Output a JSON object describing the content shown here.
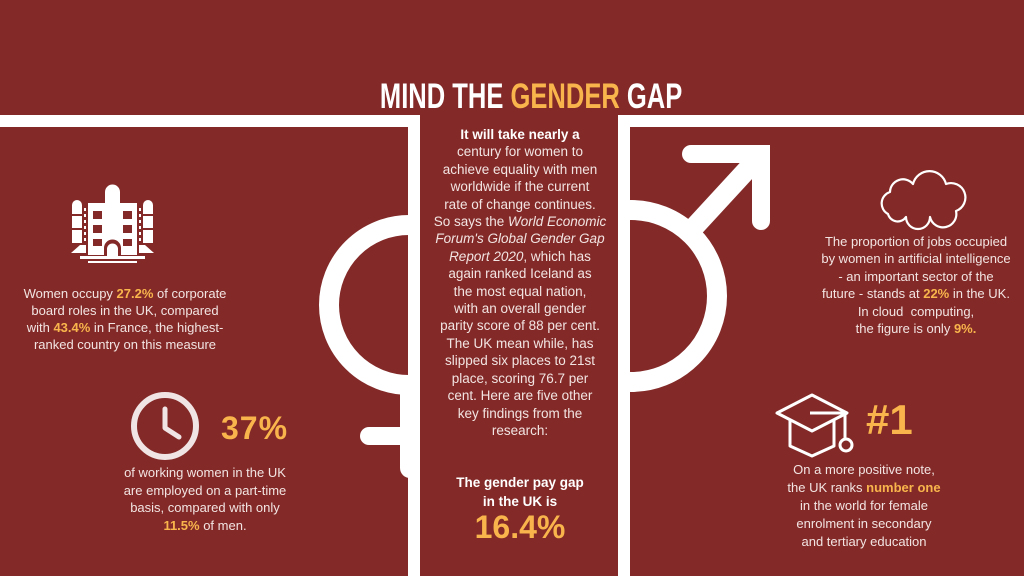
{
  "title": {
    "prefix": "MIND THE ",
    "highlight": "GENDER",
    "suffix": " GAP"
  },
  "colors": {
    "background": "#832a28",
    "highlight": "#f9b54c",
    "text": "#f2e4e2",
    "frame": "#ffffff"
  },
  "icons": {
    "board": "building-icon",
    "parttime": "clock-icon",
    "ai": "cloud-icon",
    "education": "graduation-cap-icon",
    "left_symbol": "female-symbol-icon",
    "right_symbol": "male-symbol-icon"
  },
  "board_roles": {
    "lines": [
      [
        "Women occupy ",
        {
          "text": "27.2%",
          "style": "hl"
        },
        " of corporate"
      ],
      [
        "board roles in the UK, compared"
      ],
      [
        "with ",
        {
          "text": "43.4%",
          "style": "hl"
        },
        " in France, the highest-"
      ],
      [
        "ranked country on this measure"
      ]
    ]
  },
  "part_time": {
    "stat": "37%",
    "lines": [
      [
        "of working women in the UK"
      ],
      [
        "are employed on a part-time"
      ],
      [
        "basis, compared with only"
      ],
      [
        {
          "text": "11.5%",
          "style": "hl"
        },
        " of men."
      ]
    ]
  },
  "intro": {
    "lines": [
      [
        {
          "text": "It will take nearly a",
          "style": "b"
        }
      ],
      [
        "century for women to"
      ],
      [
        "achieve equality with men"
      ],
      [
        "worldwide if the current"
      ],
      [
        "rate of change continues."
      ],
      [
        "So says the ",
        {
          "text": "World Economic",
          "style": "i"
        }
      ],
      [
        {
          "text": "Forum's Global Gender Gap",
          "style": "i"
        }
      ],
      [
        {
          "text": "Report 2020",
          "style": "i"
        },
        ", which has"
      ],
      [
        "again ranked Iceland as"
      ],
      [
        "the most equal nation,"
      ],
      [
        "with an overall gender"
      ],
      [
        "parity score of 88 per cent."
      ],
      [
        "The UK mean while, has"
      ],
      [
        "slipped six places to 21st"
      ],
      [
        "place, scoring 76.7 per"
      ],
      [
        "cent. Here are five other"
      ],
      [
        "key findings from the"
      ],
      [
        "research:"
      ]
    ]
  },
  "pay_gap": {
    "lines": [
      [
        "The gender pay gap"
      ],
      [
        "in the UK is"
      ]
    ],
    "stat": "16.4%"
  },
  "ai_jobs": {
    "lines": [
      [
        "The proportion of jobs occupied"
      ],
      [
        "by women in artificial intelligence"
      ],
      [
        "- an important sector of the"
      ],
      [
        "future - stands at ",
        {
          "text": "22%",
          "style": "hl"
        },
        " in the UK."
      ],
      [
        "In cloud  computing,"
      ],
      [
        "the figure is only ",
        {
          "text": "9%.",
          "style": "hl"
        }
      ]
    ]
  },
  "education": {
    "stat": "#1",
    "lines": [
      [
        "On a more positive note,"
      ],
      [
        "the UK ranks ",
        {
          "text": "number one",
          "style": "hl"
        }
      ],
      [
        "in the world for female"
      ],
      [
        "enrolment in secondary"
      ],
      [
        "and tertiary education"
      ]
    ]
  }
}
